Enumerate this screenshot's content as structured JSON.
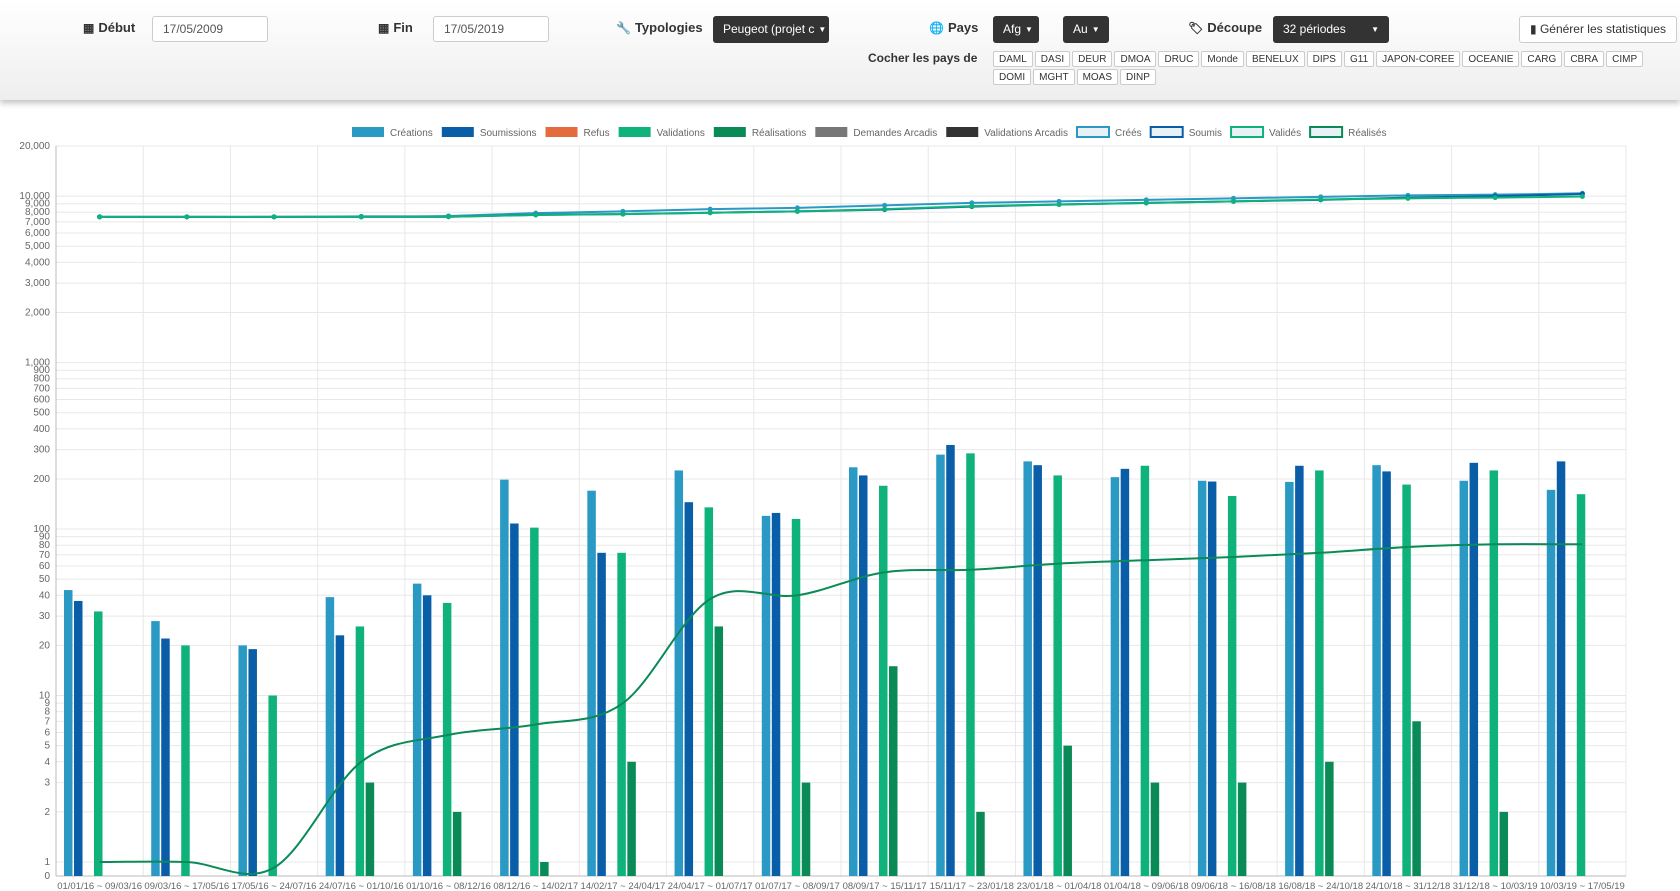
{
  "toolbar": {
    "debut_label": "Début",
    "debut_value": "17/05/2009",
    "fin_label": "Fin",
    "fin_value": "17/05/2019",
    "typologies_label": "Typologies",
    "typologies_value": "Peugeot (projet c",
    "pays_label": "Pays",
    "pays_value_1": "Afg",
    "pays_value_2": "Au",
    "decoupe_label": "Découpe",
    "decoupe_value": "32 périodes",
    "generate_label": "Générer les statistiques",
    "cocher_label": "Cocher les pays de",
    "country_tags": [
      "DAML",
      "DASI",
      "DEUR",
      "DMOA",
      "DRUC",
      "Monde",
      "BENELUX",
      "DIPS",
      "G11",
      "JAPON-COREE",
      "OCEANIE",
      "CARG",
      "CBRA",
      "CIMP",
      "DOMI",
      "MGHT",
      "MOAS",
      "DINP"
    ]
  },
  "chart_data": {
    "type": "bar",
    "y_scale": "log",
    "ylim": [
      0,
      20000
    ],
    "grid": true,
    "legend_position": "top",
    "y_tick_labels": [
      "0",
      "1",
      "2",
      "3",
      "4",
      "5",
      "6",
      "7",
      "8",
      "9",
      "10",
      "20",
      "30",
      "40",
      "50",
      "60",
      "70",
      "80",
      "90",
      "100",
      "200",
      "300",
      "400",
      "500",
      "600",
      "700",
      "800",
      "900",
      "1,000",
      "2,000",
      "3,000",
      "4,000",
      "5,000",
      "6,000",
      "7,000",
      "8,000",
      "9,000",
      "10,000",
      "20,000"
    ],
    "categories": [
      "01/01/16 ~ 09/03/16",
      "09/03/16 ~ 17/05/16",
      "17/05/16 ~ 24/07/16",
      "24/07/16 ~ 01/10/16",
      "01/10/16 ~ 08/12/16",
      "08/12/16 ~ 14/02/17",
      "14/02/17 ~ 24/04/17",
      "24/04/17 ~ 01/07/17",
      "01/07/17 ~ 08/09/17",
      "08/09/17 ~ 15/11/17",
      "15/11/17 ~ 23/01/18",
      "23/01/18 ~ 01/04/18",
      "01/04/18 ~ 09/06/18",
      "09/06/18 ~ 16/08/18",
      "16/08/18 ~ 24/10/18",
      "24/10/18 ~ 31/12/18",
      "31/12/18 ~ 10/03/19",
      "10/03/19 ~ 17/05/19"
    ],
    "series": [
      {
        "name": "Créations",
        "kind": "bar",
        "color": "#2a9ac4",
        "values": [
          43,
          28,
          20,
          39,
          47,
          198,
          170,
          225,
          120,
          235,
          280,
          255,
          205,
          195,
          192,
          242,
          195,
          172
        ]
      },
      {
        "name": "Soumissions",
        "kind": "bar",
        "color": "#0a5ea8",
        "values": [
          37,
          22,
          19,
          23,
          40,
          108,
          72,
          145,
          125,
          210,
          320,
          242,
          230,
          193,
          240,
          222,
          250,
          255
        ]
      },
      {
        "name": "Refus",
        "kind": "bar",
        "color": "#e36b3d",
        "values": [
          0,
          0,
          0,
          0,
          0,
          0,
          0,
          0,
          0,
          0,
          0,
          0,
          0,
          0,
          0,
          0,
          0,
          0
        ]
      },
      {
        "name": "Validations",
        "kind": "bar",
        "color": "#10b27c",
        "values": [
          32,
          20,
          10,
          26,
          36,
          102,
          72,
          135,
          115,
          182,
          285,
          210,
          240,
          158,
          225,
          185,
          225,
          162
        ]
      },
      {
        "name": "Réalisations",
        "kind": "bar",
        "color": "#0a8a56",
        "values": [
          0,
          0,
          0,
          3,
          2,
          1,
          4,
          26,
          3,
          15,
          2,
          5,
          3,
          3,
          4,
          7,
          2,
          0
        ]
      },
      {
        "name": "Demandes Arcadis",
        "kind": "bar",
        "color": "#777777",
        "values": [
          0,
          0,
          0,
          0,
          0,
          0,
          0,
          0,
          0,
          0,
          0,
          0,
          0,
          0,
          0,
          0,
          0,
          0
        ]
      },
      {
        "name": "Validations Arcadis",
        "kind": "bar",
        "color": "#333333",
        "values": [
          0,
          0,
          0,
          0,
          0,
          0,
          0,
          0,
          0,
          0,
          0,
          0,
          0,
          0,
          0,
          0,
          0,
          0
        ]
      },
      {
        "name": "Créés",
        "kind": "line",
        "color": "#2a9ac4",
        "values": [
          7500,
          7500,
          7500,
          7550,
          7600,
          7900,
          8100,
          8350,
          8500,
          8800,
          9100,
          9300,
          9500,
          9700,
          9900,
          10100,
          10200,
          10400
        ]
      },
      {
        "name": "Soumis",
        "kind": "line",
        "color": "#0a5ea8",
        "values": [
          7500,
          7500,
          7500,
          7500,
          7520,
          7720,
          7800,
          7950,
          8100,
          8300,
          8650,
          8900,
          9100,
          9300,
          9500,
          9800,
          10000,
          10300
        ]
      },
      {
        "name": "Validés",
        "kind": "line",
        "color": "#10b27c",
        "values": [
          7500,
          7500,
          7500,
          7500,
          7520,
          7700,
          7800,
          7950,
          8100,
          8350,
          8700,
          8900,
          9100,
          9300,
          9550,
          9700,
          9800,
          9950
        ]
      },
      {
        "name": "Réalisés",
        "kind": "line",
        "color": "#0a8a56",
        "values": [
          1,
          1,
          0.6,
          4,
          5.8,
          6.7,
          9,
          38,
          40,
          55,
          57,
          62,
          65,
          68,
          72,
          78,
          81,
          81
        ]
      }
    ]
  }
}
